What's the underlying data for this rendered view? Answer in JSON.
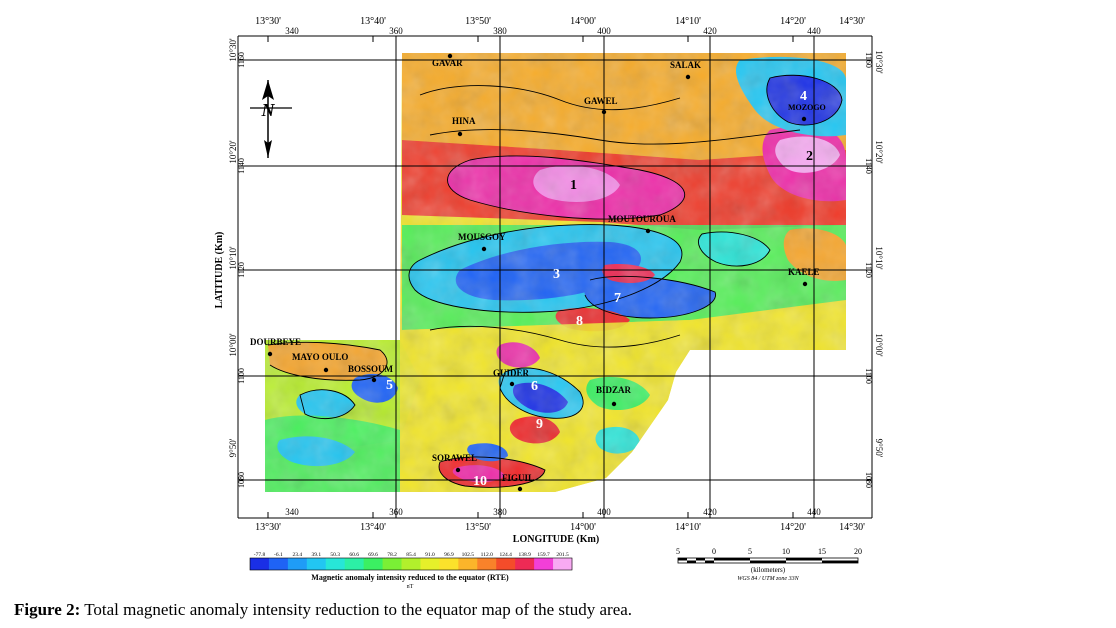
{
  "map": {
    "top_lon_labels": [
      "13°30'",
      "13°40'",
      "13°50'",
      "14°00'",
      "14°10'",
      "14°20'",
      "14°30'"
    ],
    "top_km_labels": [
      "340",
      "360",
      "380",
      "400",
      "420",
      "440"
    ],
    "bottom_lon_labels": [
      "13°30'",
      "13°40'",
      "13°50'",
      "14°00'",
      "14°10'",
      "14°20'",
      "14°30'"
    ],
    "bottom_km_labels": [
      "340",
      "360",
      "380",
      "400",
      "420",
      "440"
    ],
    "left_lat_labels": [
      "10°30'",
      "10°20'",
      "10°10'",
      "10°00'",
      "9°50'"
    ],
    "left_km_labels": [
      "1160",
      "1140",
      "1120",
      "1100",
      "1080"
    ],
    "right_lat_labels": [
      "10°30'",
      "10°20'",
      "10°10'",
      "10°00'",
      "9°50'"
    ],
    "right_km_labels": [
      "1160",
      "1140",
      "1120",
      "1100",
      "1080"
    ],
    "x_axis_title": "LONGITUDE (Km)",
    "y_axis_title": "LATITUDE (Km)",
    "north_label": "N",
    "towns": [
      {
        "name": "GAVAR"
      },
      {
        "name": "SALAK"
      },
      {
        "name": "GAWEL"
      },
      {
        "name": "HINA"
      },
      {
        "name": "MOUTOUROUA"
      },
      {
        "name": "MOUSGOY"
      },
      {
        "name": "KAELE"
      },
      {
        "name": "DOURBEYE"
      },
      {
        "name": "MAYO OULO"
      },
      {
        "name": "BOSSOUM"
      },
      {
        "name": "GUIDER"
      },
      {
        "name": "BIDZAR"
      },
      {
        "name": "SORAWEL"
      },
      {
        "name": "FIGUIL"
      },
      {
        "name": "MOZOGO"
      }
    ],
    "anomaly_numbers": [
      "1",
      "2",
      "3",
      "4",
      "5",
      "6",
      "7",
      "8",
      "9",
      "10"
    ]
  },
  "legend": {
    "values": [
      "-77.8",
      "-6.1",
      "23.4",
      "39.1",
      "50.3",
      "60.6",
      "69.6",
      "78.2",
      "85.4",
      "91.0",
      "96.9",
      "102.5",
      "112.0",
      "124.4",
      "138.9",
      "159.7",
      "201.5"
    ],
    "colors": [
      "#1a2fe6",
      "#1f63f5",
      "#1f9cf7",
      "#22c6f2",
      "#27e6d8",
      "#2cf0a6",
      "#3bf062",
      "#7af035",
      "#b2f02c",
      "#e6f02a",
      "#fbe22b",
      "#fbb52a",
      "#f9822a",
      "#f44c2a",
      "#ee2a55",
      "#f23fd8",
      "#f8aaf3"
    ],
    "title": "Magnetic anomaly intensity reduced to the equator (RTE)",
    "unit": "nT"
  },
  "scale_bar": {
    "ticks": [
      "5",
      "0",
      "5",
      "10",
      "15",
      "20"
    ],
    "unit": "(kilometers)",
    "projection": "WGS 84 / UTM zone 33N"
  },
  "caption": {
    "label": "Figure 2:",
    "text": " Total magnetic anomaly intensity reduction to the equator map of the study area."
  }
}
